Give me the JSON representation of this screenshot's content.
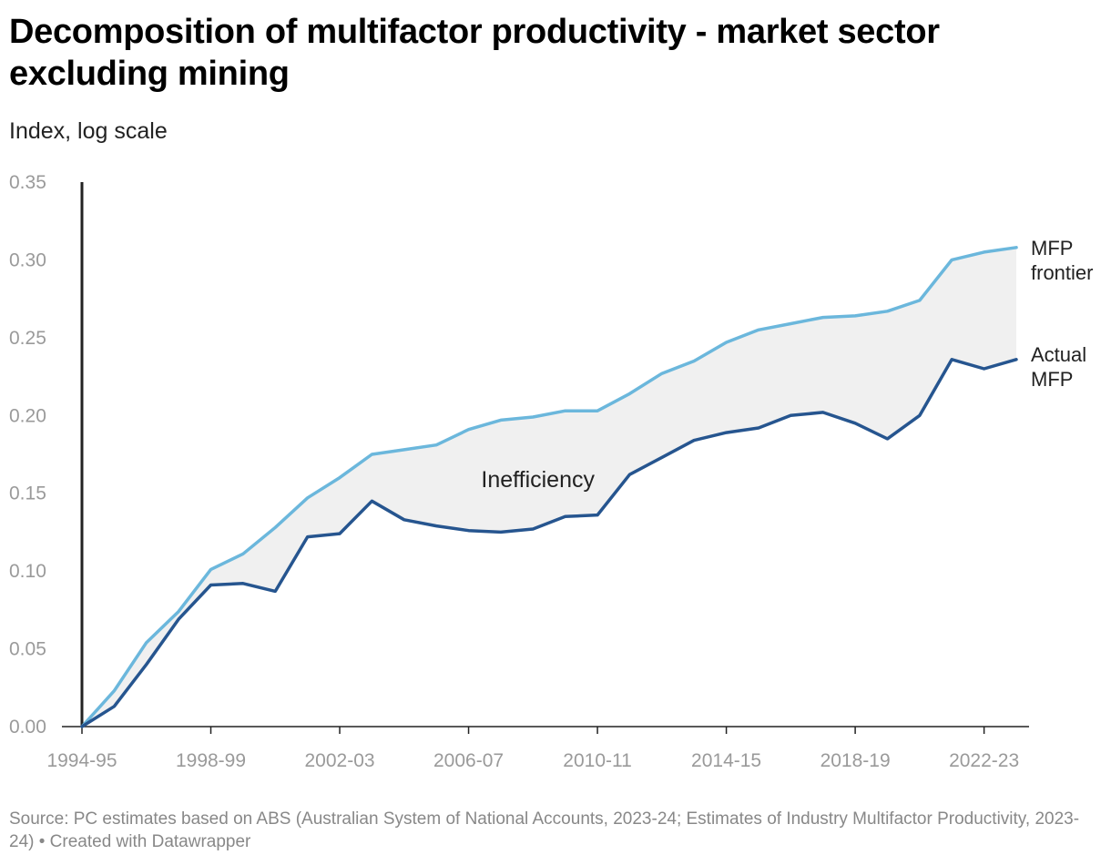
{
  "header": {
    "title": "Decomposition of multifactor productivity - market sector excluding mining",
    "subtitle": "Index, log scale"
  },
  "footer": {
    "notes": "Source: PC estimates based on ABS (Australian System of National Accounts, 2023-24; Estimates of Industry Multifactor Productivity, 2023-24) • Created with Datawrapper"
  },
  "colors": {
    "frontier": "#6bb7dc",
    "actual": "#26558f",
    "fill": "#f0f0f0",
    "axis": "#222222",
    "tick_text": "#9a9a9a"
  },
  "chart_data": {
    "type": "line",
    "title": "Decomposition of multifactor productivity - market sector excluding mining",
    "ylabel": "Index, log scale",
    "xlabel": "",
    "ylim": [
      0,
      0.35
    ],
    "yticks": [
      "0.00",
      "0.05",
      "0.10",
      "0.15",
      "0.20",
      "0.25",
      "0.30",
      "0.35"
    ],
    "ytick_values": [
      0,
      0.05,
      0.1,
      0.15,
      0.2,
      0.25,
      0.3,
      0.35
    ],
    "x": [
      "1994-95",
      "1995-96",
      "1996-97",
      "1997-98",
      "1998-99",
      "1999-00",
      "2000-01",
      "2001-02",
      "2002-03",
      "2003-04",
      "2004-05",
      "2005-06",
      "2006-07",
      "2007-08",
      "2008-09",
      "2009-10",
      "2010-11",
      "2011-12",
      "2012-13",
      "2013-14",
      "2014-15",
      "2015-16",
      "2016-17",
      "2017-18",
      "2018-19",
      "2019-20",
      "2020-21",
      "2021-22",
      "2022-23",
      "2023-24"
    ],
    "xticks": [
      "1994-95",
      "1998-99",
      "2002-03",
      "2006-07",
      "2010-11",
      "2014-15",
      "2018-19",
      "2022-23"
    ],
    "xtick_index": [
      0,
      4,
      8,
      12,
      16,
      20,
      24,
      28
    ],
    "series": [
      {
        "name": "MFP frontier",
        "label_lines": [
          "MFP",
          "frontier"
        ],
        "values": [
          0.0,
          0.023,
          0.054,
          0.074,
          0.101,
          0.111,
          0.128,
          0.147,
          0.16,
          0.175,
          0.178,
          0.181,
          0.191,
          0.197,
          0.199,
          0.203,
          0.203,
          0.214,
          0.227,
          0.235,
          0.247,
          0.255,
          0.259,
          0.263,
          0.264,
          0.267,
          0.274,
          0.3,
          0.305,
          0.308
        ]
      },
      {
        "name": "Actual MFP",
        "label_lines": [
          "Actual",
          "MFP"
        ],
        "values": [
          0.0,
          0.013,
          0.04,
          0.069,
          0.091,
          0.092,
          0.087,
          0.122,
          0.124,
          0.145,
          0.133,
          0.129,
          0.126,
          0.125,
          0.127,
          0.135,
          0.136,
          0.162,
          0.173,
          0.184,
          0.189,
          0.192,
          0.2,
          0.202,
          0.195,
          0.185,
          0.2,
          0.236,
          0.23,
          0.236
        ]
      }
    ],
    "annotations": [
      {
        "text": "Inefficiency"
      }
    ]
  }
}
